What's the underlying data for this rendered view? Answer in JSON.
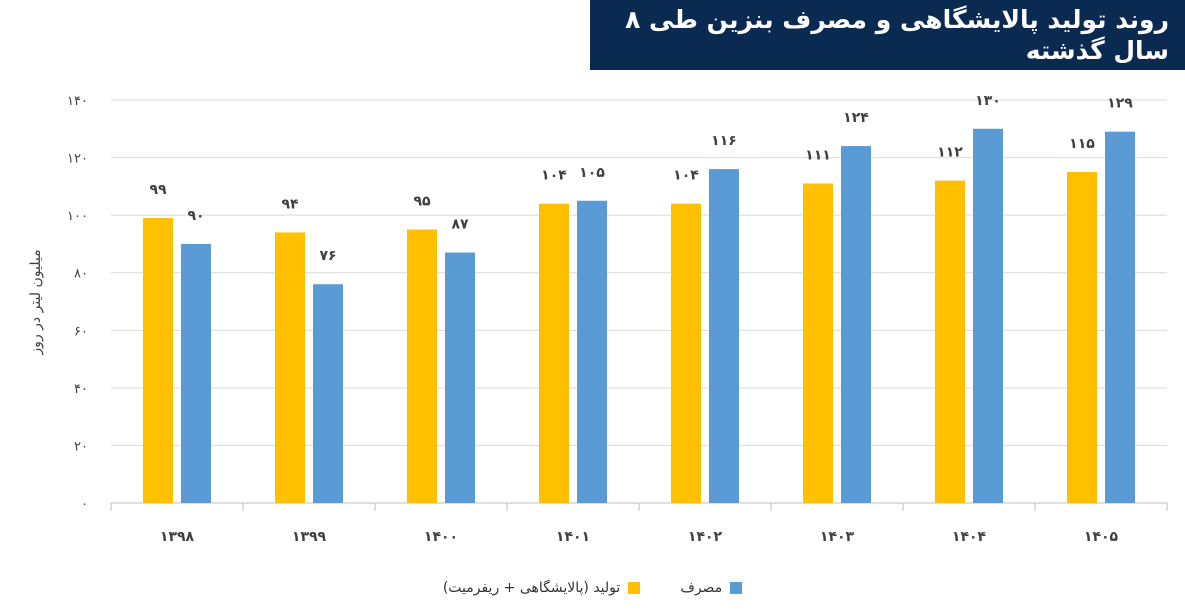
{
  "header": {
    "title": "روند تولید پالایشگاهی و مصرف بنزین طی ۸ سال گذشته"
  },
  "colors": {
    "production": "#ffc000",
    "consumption": "#5b9bd5",
    "banner": "#0b2a52",
    "grid": "#d9d9d9"
  },
  "chart_data": {
    "type": "bar",
    "title": "روند تولید پالایشگاهی و مصرف بنزین طی ۸ سال گذشته",
    "xlabel": "",
    "ylabel": "میلیون لیتر در روز",
    "ylim": [
      0,
      140
    ],
    "yticks": [
      0,
      20,
      40,
      60,
      80,
      100,
      120,
      140
    ],
    "ytick_labels": [
      "۰",
      "۲۰",
      "۴۰",
      "۶۰",
      "۸۰",
      "۱۰۰",
      "۱۲۰",
      "۱۴۰"
    ],
    "categories": [
      "۱۳۹۸",
      "۱۳۹۹",
      "۱۴۰۰",
      "۱۴۰۱",
      "۱۴۰۲",
      "۱۴۰۳",
      "۱۴۰۴",
      "۱۴۰۵"
    ],
    "series": [
      {
        "name": "تولید (پالایشگاهی + ریفرمیت)",
        "values": [
          99,
          94,
          95,
          104,
          104,
          111,
          112,
          115
        ],
        "labels": [
          "۹۹",
          "۹۴",
          "۹۵",
          "۱۰۴",
          "۱۰۴",
          "۱۱۱",
          "۱۱۲",
          "۱۱۵"
        ]
      },
      {
        "name": "مصرف",
        "values": [
          90,
          76,
          87,
          105,
          116,
          124,
          130,
          129
        ],
        "labels": [
          "۹۰",
          "۷۶",
          "۸۷",
          "۱۰۵",
          "۱۱۶",
          "۱۲۴",
          "۱۳۰",
          "۱۲۹"
        ]
      }
    ],
    "grid": true,
    "legend": "bottom"
  }
}
